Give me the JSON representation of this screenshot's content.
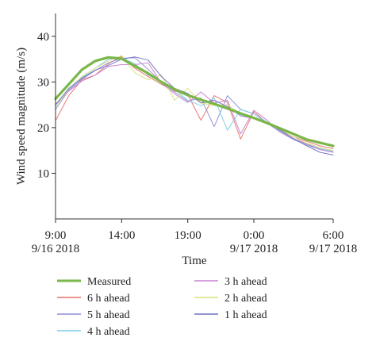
{
  "chart_data": {
    "type": "line",
    "xlabel": "Time",
    "ylabel": "Wind speed magnitude (m/s)",
    "xlim": [
      0,
      21
    ],
    "ylim": [
      0,
      45
    ],
    "yticks": [
      10,
      20,
      30,
      40
    ],
    "xticks": [
      {
        "value": 0,
        "line1": "9:00",
        "line2": "9/16 2018"
      },
      {
        "value": 5,
        "line1": "14:00",
        "line2": ""
      },
      {
        "value": 10,
        "line1": "19:00",
        "line2": ""
      },
      {
        "value": 15,
        "line1": "0:00",
        "line2": "9/17 2018"
      },
      {
        "value": 21,
        "line1": "6:00",
        "line2": "9/17 2018"
      }
    ],
    "grid": false,
    "legend_position": "bottom",
    "x": [
      0,
      1,
      2,
      3,
      4,
      5,
      6,
      7,
      8,
      9,
      10,
      11,
      12,
      13,
      14,
      15,
      16,
      17,
      18,
      19,
      20,
      21
    ],
    "series": [
      {
        "name": "Measured",
        "color": "#7ab648",
        "width": 3.2,
        "values": [
          26.3,
          29.5,
          32.7,
          34.6,
          35.4,
          35.1,
          33.5,
          31.9,
          30.0,
          28.4,
          27.1,
          26.1,
          25.2,
          24.2,
          23.1,
          22.1,
          21.0,
          19.8,
          18.6,
          17.4,
          16.7,
          16.0
        ]
      },
      {
        "name": "6 h ahead",
        "color": "#e8706a",
        "width": 1,
        "values": [
          21.5,
          27.0,
          30.5,
          31.5,
          34.0,
          35.6,
          33.0,
          31.2,
          29.5,
          28.0,
          27.2,
          21.6,
          27.0,
          25.5,
          17.5,
          23.5,
          21.0,
          19.5,
          18.0,
          17.0,
          16.0,
          15.4
        ]
      },
      {
        "name": "5 h ahead",
        "color": "#8f8fd6",
        "width": 1,
        "values": [
          24.0,
          28.2,
          30.6,
          32.5,
          34.2,
          35.2,
          35.3,
          32.8,
          30.0,
          27.8,
          25.8,
          26.5,
          20.2,
          27.0,
          24.0,
          23.0,
          21.0,
          19.0,
          17.4,
          16.2,
          15.2,
          14.6
        ]
      },
      {
        "name": "4 h ahead",
        "color": "#7dcde8",
        "width": 1,
        "values": [
          25.0,
          28.4,
          31.0,
          33.0,
          35.0,
          35.3,
          34.0,
          31.5,
          30.0,
          28.4,
          26.0,
          24.8,
          26.5,
          19.4,
          24.0,
          23.0,
          21.2,
          19.2,
          17.6,
          16.5,
          15.4,
          14.8
        ]
      },
      {
        "name": "3 h ahead",
        "color": "#c681d2",
        "width": 1,
        "values": [
          25.0,
          28.0,
          30.2,
          31.5,
          33.4,
          33.8,
          33.8,
          34.2,
          29.8,
          27.4,
          25.5,
          27.8,
          25.4,
          26.0,
          18.6,
          23.8,
          21.6,
          19.0,
          17.6,
          16.4,
          15.2,
          14.6
        ]
      },
      {
        "name": "2 h ahead",
        "color": "#d8e07a",
        "width": 1,
        "values": [
          24.5,
          28.5,
          31.2,
          33.0,
          34.6,
          35.8,
          32.0,
          30.5,
          31.6,
          26.0,
          28.6,
          25.4,
          24.8,
          25.0,
          23.0,
          22.3,
          21.0,
          19.4,
          18.0,
          16.6,
          15.6,
          15.0
        ]
      },
      {
        "name": "1 h ahead",
        "color": "#6f72c6",
        "width": 1,
        "values": [
          25.0,
          28.6,
          30.8,
          32.6,
          33.6,
          35.0,
          35.5,
          34.8,
          31.2,
          28.6,
          27.5,
          25.4,
          26.0,
          24.6,
          22.6,
          22.0,
          21.2,
          19.4,
          17.6,
          16.0,
          14.6,
          14.0
        ]
      }
    ],
    "legend_order": [
      0,
      4,
      1,
      5,
      2,
      6,
      3
    ]
  }
}
